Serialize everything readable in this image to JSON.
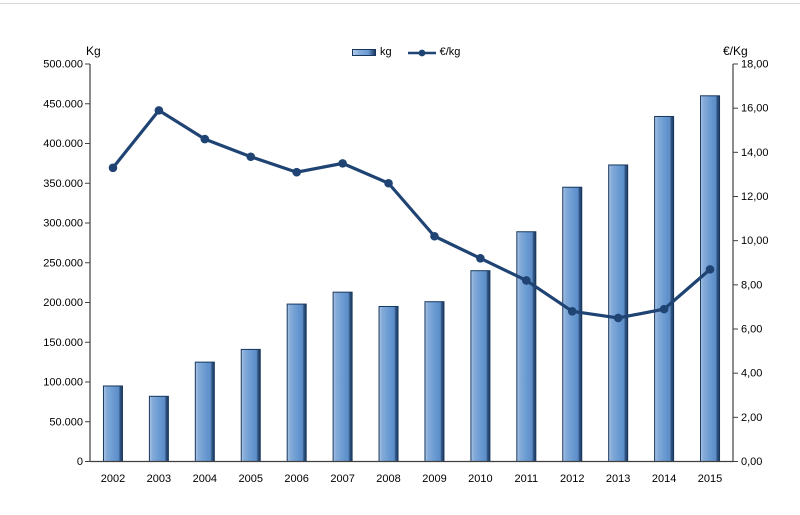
{
  "chart_data": {
    "type": "combo",
    "title": "",
    "categories": [
      "2002",
      "2003",
      "2004",
      "2005",
      "2006",
      "2007",
      "2008",
      "2009",
      "2010",
      "2011",
      "2012",
      "2013",
      "2014",
      "2015"
    ],
    "series": [
      {
        "name": "kg",
        "type": "bar",
        "axis": "left",
        "values": [
          95000,
          82000,
          125000,
          141000,
          198000,
          213000,
          195000,
          201000,
          240000,
          289000,
          345000,
          373000,
          434000,
          460000
        ]
      },
      {
        "name": "€/kg",
        "type": "line",
        "axis": "right",
        "values": [
          13.3,
          15.9,
          14.6,
          13.8,
          13.1,
          13.5,
          12.6,
          10.2,
          9.2,
          8.2,
          6.8,
          6.5,
          6.9,
          8.7
        ]
      }
    ],
    "left_axis": {
      "title": "Kg",
      "min": 0,
      "max": 500000,
      "step": 50000,
      "tick_labels": [
        "0",
        "50.000",
        "100.000",
        "150.000",
        "200.000",
        "250.000",
        "300.000",
        "350.000",
        "400.000",
        "450.000",
        "500.000"
      ]
    },
    "right_axis": {
      "title": "€/Kg",
      "min": 0,
      "max": 18,
      "step": 2,
      "tick_labels": [
        "0,00",
        "2,00",
        "4,00",
        "6,00",
        "8,00",
        "10,00",
        "12,00",
        "14,00",
        "16,00",
        "18,00"
      ]
    },
    "grid": false,
    "legend_position": "top-center"
  },
  "legend": {
    "items": [
      {
        "label": "kg",
        "type": "bar"
      },
      {
        "label": "€/kg",
        "type": "line"
      }
    ]
  },
  "colors": {
    "bar_gradient": [
      "#b0c8e6",
      "#86acd9",
      "#6b9bd2",
      "#5d8dc8",
      "#2f527e",
      "#1e3c64"
    ],
    "bar_border": "#17375e",
    "line": "#1f4473",
    "axis": "#404040",
    "text": "#000000",
    "top_border": "#d8d8d8",
    "background": "#ffffff"
  }
}
